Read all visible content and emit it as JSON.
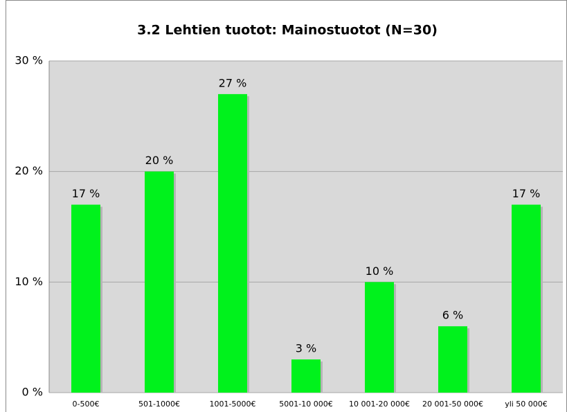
{
  "chart_data": {
    "type": "bar",
    "title": "3.2 Lehtien tuotot: Mainostuotot (N=30)",
    "categories": [
      "0-500€",
      "501-1000€",
      "1001-5000€",
      "5001-10 000€",
      "10 001-20 000€",
      "20 001-50 000€",
      "yli 50 000€"
    ],
    "values": [
      17,
      20,
      27,
      3,
      10,
      6,
      17
    ],
    "value_labels": [
      "17 %",
      "20 %",
      "27 %",
      "3 %",
      "10 %",
      "6 %",
      "17 %"
    ],
    "color": "#00f21c",
    "ylim": [
      0,
      30
    ],
    "yticks": [
      {
        "value": 0,
        "label": "0 %"
      },
      {
        "value": 10,
        "label": "10 %"
      },
      {
        "value": 20,
        "label": "20 %"
      },
      {
        "value": 30,
        "label": "30 %"
      }
    ],
    "grid": true
  }
}
